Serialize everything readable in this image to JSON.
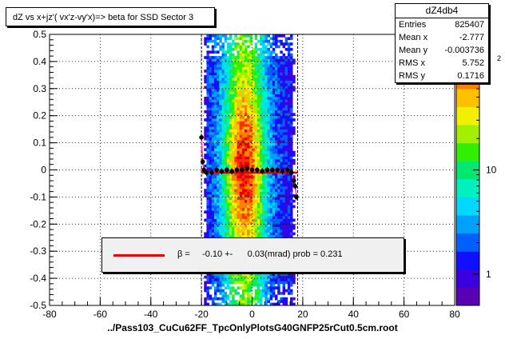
{
  "title": "dZ vs  x+jz'( vx'z-vy'x)=> beta  for SSD Sector 3",
  "stats": {
    "name": "dZ4db4",
    "rows": [
      {
        "label": "Entries",
        "value": "825407"
      },
      {
        "label": "Mean x",
        "value": "-2.777"
      },
      {
        "label": "Mean y",
        "value": "-0.003736"
      },
      {
        "label": "RMS x",
        "value": "5.752"
      },
      {
        "label": "RMS y",
        "value": "0.1716"
      }
    ]
  },
  "legend": {
    "text": "β =     -0.10 +-      0.03(mrad) prob = 0.231",
    "line_color": "#e00000"
  },
  "x_title": "../Pass103_CuCu62FF_TpcOnlyPlotsG40GNFP25rCut0.5cm.root",
  "colorbar": {
    "tick_labels": [
      "1",
      "10"
    ],
    "exponent_label": "2"
  },
  "chart_data": {
    "type": "heatmap",
    "title": "dZ vs  x+jz'( vx'z-vy'x)=> beta  for SSD Sector 3",
    "xlabel": "../Pass103_CuCu62FF_TpcOnlyPlotsG40GNFP25rCut0.5cm.root",
    "ylabel": "",
    "xlim": [
      -80,
      80
    ],
    "ylim": [
      -0.5,
      0.5
    ],
    "x_ticks": [
      "-80",
      "-60",
      "-40",
      "-20",
      "0",
      "20",
      "40",
      "60",
      "80"
    ],
    "y_ticks": [
      "-0.5",
      "-0.4",
      "-0.3",
      "-0.2",
      "-0.1",
      "0",
      "0.1",
      "0.2",
      "0.3",
      "0.4",
      "0.5"
    ],
    "z_scale": "log",
    "z_range": [
      0.5,
      200
    ],
    "band_x_range": [
      -20,
      18
    ],
    "profile_points": [
      {
        "x": -20,
        "y": 0.12
      },
      {
        "x": -19.5,
        "y": 0.03
      },
      {
        "x": -19,
        "y": 0.0
      },
      {
        "x": -18,
        "y": -0.01
      },
      {
        "x": -16,
        "y": -0.01
      },
      {
        "x": -14,
        "y": 0.0
      },
      {
        "x": -12,
        "y": -0.005
      },
      {
        "x": -10,
        "y": 0.0
      },
      {
        "x": -8,
        "y": -0.005
      },
      {
        "x": -6,
        "y": 0.0
      },
      {
        "x": -4,
        "y": 0.0
      },
      {
        "x": -2,
        "y": 0.005
      },
      {
        "x": 0,
        "y": 0.0
      },
      {
        "x": 2,
        "y": 0.0
      },
      {
        "x": 4,
        "y": -0.005
      },
      {
        "x": 6,
        "y": 0.0
      },
      {
        "x": 8,
        "y": 0.0
      },
      {
        "x": 10,
        "y": 0.0
      },
      {
        "x": 12,
        "y": -0.005
      },
      {
        "x": 14,
        "y": 0.0
      },
      {
        "x": 15.5,
        "y": -0.01
      },
      {
        "x": 16.5,
        "y": -0.04
      },
      {
        "x": 17,
        "y": -0.06
      },
      {
        "x": 17.5,
        "y": -0.1
      }
    ],
    "fit_line": {
      "x": [
        -20,
        18
      ],
      "y": [
        -0.01,
        -0.01
      ],
      "color": "#e00000"
    }
  }
}
